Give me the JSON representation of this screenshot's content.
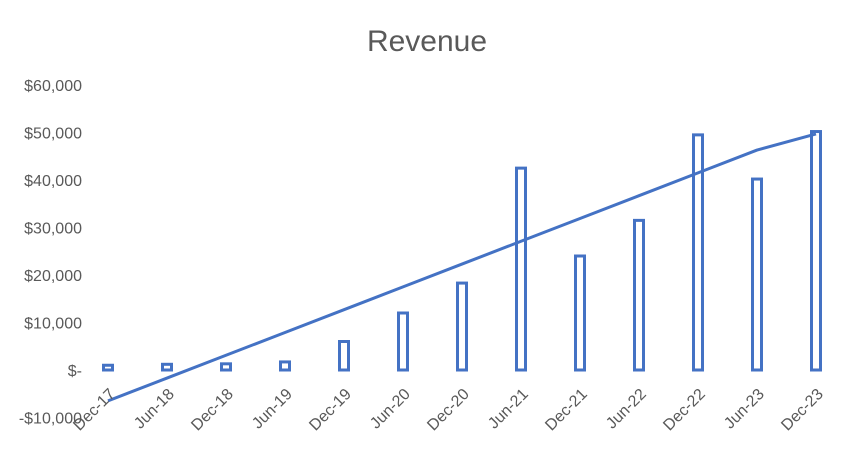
{
  "chart_data": {
    "type": "bar",
    "title": "Revenue",
    "xlabel": "",
    "ylabel": "",
    "categories": [
      "Dec-17",
      "Jun-18",
      "Dec-18",
      "Jun-19",
      "Dec-19",
      "Jun-20",
      "Dec-20",
      "Jun-21",
      "Dec-21",
      "Jun-22",
      "Dec-22",
      "Jun-23",
      "Dec-23"
    ],
    "series": [
      {
        "type": "bar",
        "values": [
          1000,
          1200,
          1300,
          1700,
          6000,
          12000,
          18300,
          42500,
          24000,
          31500,
          49500,
          40200,
          50200
        ]
      },
      {
        "type": "line",
        "values": [
          -6500,
          -1700,
          3100,
          7900,
          12700,
          17500,
          22300,
          27100,
          31900,
          36700,
          41500,
          46300,
          49700
        ]
      }
    ],
    "y_ticks": [
      "-$10,000",
      "$-",
      "$10,000",
      "$20,000",
      "$30,000",
      "$40,000",
      "$50,000",
      "$60,000"
    ],
    "ylim": [
      -10000,
      60000
    ],
    "grid": false,
    "legend": "none",
    "colors": {
      "series": "#4472C4",
      "text": "#595959"
    }
  }
}
